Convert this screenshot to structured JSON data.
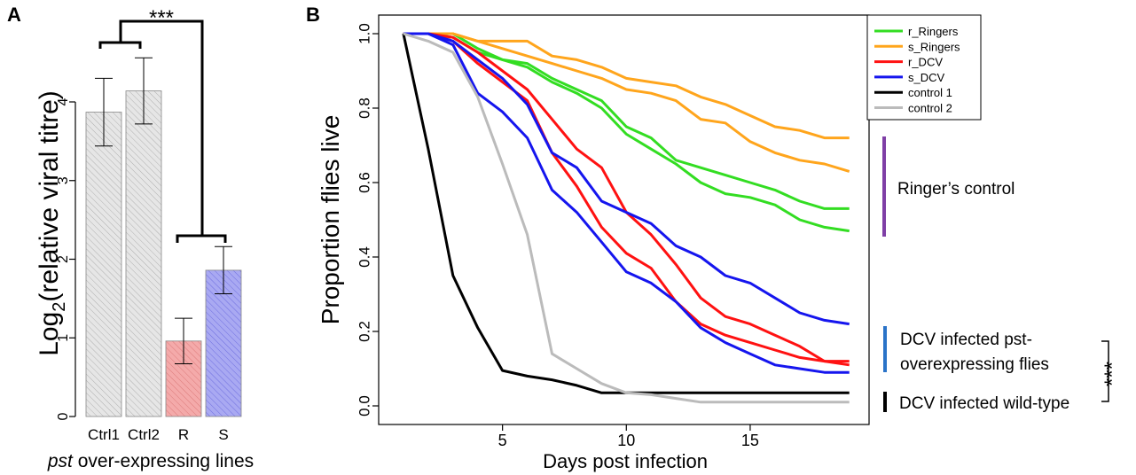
{
  "panels": {
    "a_letter": "A",
    "b_letter": "B"
  },
  "chart_data": [
    {
      "type": "bar",
      "ylabel_prefix": "Log",
      "ylabel_sub": "2",
      "ylabel_suffix": "(relative viral titre)",
      "xlabel_italic": "pst",
      "xlabel_rest": " over-expressing lines",
      "categories": [
        "Ctrl1",
        "Ctrl2",
        "R",
        "S"
      ],
      "values": [
        3.87,
        4.14,
        0.96,
        1.86
      ],
      "errors": [
        0.43,
        0.42,
        0.29,
        0.3
      ],
      "colors": [
        "#e6e6e6",
        "#e6e6e6",
        "#f4aaaa",
        "#a9a9f2"
      ],
      "hatch_colors": [
        "#b0b0b0",
        "#b0b0b0",
        "#dc7a7a",
        "#6f6fe0"
      ],
      "ylim": [
        0,
        4.6
      ],
      "yticks": [
        0,
        1,
        2,
        3,
        4
      ],
      "significance": "***"
    },
    {
      "type": "line",
      "xlabel": "Days post infection",
      "ylabel": "Proportion flies live",
      "xlim": [
        0,
        19.8
      ],
      "ylim": [
        -0.05,
        1.05
      ],
      "xticks": [
        5,
        10,
        15
      ],
      "yticks": [
        "0.0",
        "0.2",
        "0.4",
        "0.6",
        "0.8",
        "1.0"
      ],
      "x": [
        1,
        2,
        3,
        4,
        5,
        6,
        7,
        8,
        9,
        10,
        11,
        12,
        13,
        14,
        15,
        16,
        17,
        18,
        19
      ],
      "series": [
        {
          "name": "r_Ringers",
          "color": "#33dd22",
          "values": [
            1,
            1,
            1,
            0.96,
            0.93,
            0.92,
            0.88,
            0.85,
            0.82,
            0.75,
            0.72,
            0.66,
            0.64,
            0.62,
            0.6,
            0.58,
            0.55,
            0.53,
            0.53
          ]
        },
        {
          "name": "r_Ringers",
          "color": "#33dd22",
          "values": [
            1,
            1,
            0.99,
            0.95,
            0.93,
            0.91,
            0.87,
            0.84,
            0.8,
            0.73,
            0.69,
            0.65,
            0.6,
            0.57,
            0.56,
            0.54,
            0.5,
            0.48,
            0.47
          ]
        },
        {
          "name": "s_Ringers",
          "color": "#ffa51c",
          "values": [
            1,
            1,
            1,
            0.98,
            0.98,
            0.98,
            0.94,
            0.93,
            0.91,
            0.88,
            0.87,
            0.86,
            0.83,
            0.81,
            0.78,
            0.75,
            0.74,
            0.72,
            0.72
          ]
        },
        {
          "name": "s_Ringers",
          "color": "#ffa51c",
          "values": [
            1,
            1,
            1,
            0.98,
            0.96,
            0.94,
            0.92,
            0.9,
            0.88,
            0.85,
            0.84,
            0.82,
            0.77,
            0.76,
            0.71,
            0.68,
            0.66,
            0.65,
            0.63
          ]
        },
        {
          "name": "r_DCV",
          "color": "#ff1111",
          "values": [
            1,
            1,
            0.99,
            0.95,
            0.9,
            0.85,
            0.77,
            0.69,
            0.64,
            0.52,
            0.46,
            0.38,
            0.29,
            0.24,
            0.22,
            0.19,
            0.16,
            0.12,
            0.12
          ]
        },
        {
          "name": "r_DCV",
          "color": "#ff1111",
          "values": [
            1,
            1,
            0.98,
            0.92,
            0.87,
            0.82,
            0.68,
            0.59,
            0.48,
            0.41,
            0.37,
            0.28,
            0.22,
            0.19,
            0.17,
            0.15,
            0.13,
            0.12,
            0.11
          ]
        },
        {
          "name": "s_DCV",
          "color": "#1515ee",
          "values": [
            1,
            1,
            0.98,
            0.93,
            0.88,
            0.81,
            0.68,
            0.64,
            0.55,
            0.52,
            0.49,
            0.43,
            0.4,
            0.35,
            0.33,
            0.29,
            0.25,
            0.23,
            0.22
          ]
        },
        {
          "name": "s_DCV",
          "color": "#1515ee",
          "values": [
            1,
            1,
            0.97,
            0.84,
            0.79,
            0.72,
            0.58,
            0.52,
            0.44,
            0.36,
            0.33,
            0.28,
            0.21,
            0.17,
            0.14,
            0.11,
            0.1,
            0.09,
            0.09
          ]
        },
        {
          "name": "control 1",
          "color": "#000000",
          "values": [
            1,
            0.69,
            0.35,
            0.21,
            0.095,
            0.08,
            0.07,
            0.055,
            0.035,
            0.035,
            0.035,
            0.035,
            0.035,
            0.035,
            0.035,
            0.035,
            0.035,
            0.035,
            0.035
          ]
        },
        {
          "name": "control 2",
          "color": "#bbbbbb",
          "values": [
            1,
            0.98,
            0.95,
            0.83,
            0.65,
            0.46,
            0.14,
            0.1,
            0.06,
            0.035,
            0.03,
            0.02,
            0.01,
            0.01,
            0.01,
            0.01,
            0.01,
            0.01,
            0.01
          ]
        }
      ],
      "legend": {
        "placement": "top-right",
        "entries": [
          {
            "name": "r_Ringers",
            "color": "#33dd22"
          },
          {
            "name": "s_Ringers",
            "color": "#ffa51c"
          },
          {
            "name": "r_DCV",
            "color": "#ff1111"
          },
          {
            "name": "s_DCV",
            "color": "#1515ee"
          },
          {
            "name": "control 1",
            "color": "#000000"
          },
          {
            "name": "control 2",
            "color": "#bbbbbb"
          }
        ]
      },
      "annotations": {
        "ringer": {
          "text": "Ringer’s control",
          "color": "#7f3fa6"
        },
        "pst_line1": "DCV infected pst-",
        "pst_line2": "overexpressing flies",
        "pst_color": "#2a73c8",
        "wt": "DCV infected wild-type",
        "wt_color": "#000000",
        "significance": "***"
      }
    }
  ]
}
